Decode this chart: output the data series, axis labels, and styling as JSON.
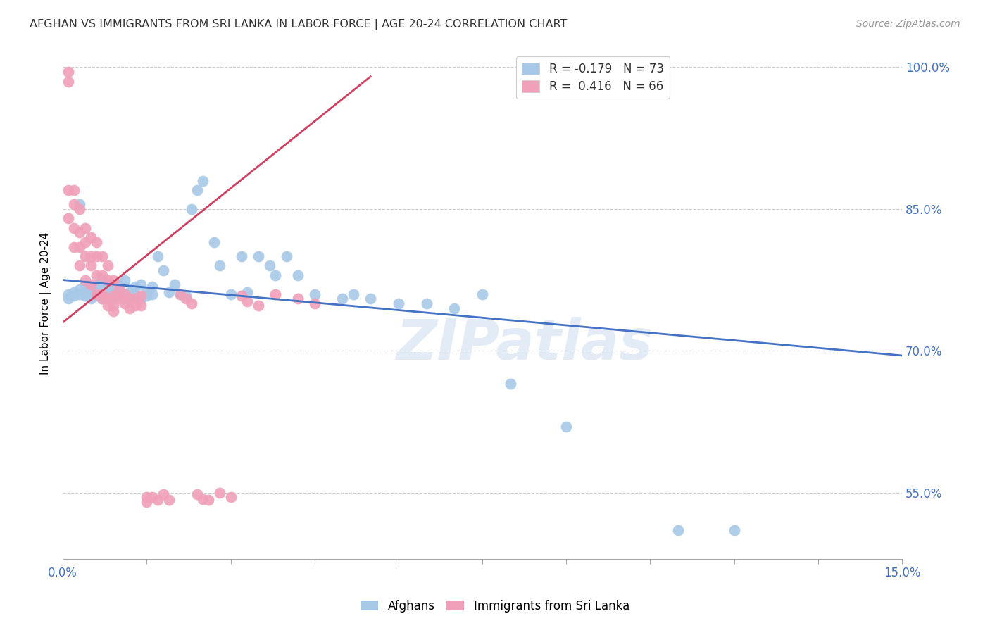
{
  "title": "AFGHAN VS IMMIGRANTS FROM SRI LANKA IN LABOR FORCE | AGE 20-24 CORRELATION CHART",
  "source": "Source: ZipAtlas.com",
  "ylabel": "In Labor Force | Age 20-24",
  "xlim": [
    0.0,
    0.15
  ],
  "ylim": [
    0.48,
    1.02
  ],
  "blue_color": "#a8c8e8",
  "pink_color": "#f0a0b8",
  "trend_blue": "#4472c4",
  "trend_pink": "#d04060",
  "watermark": "ZIPatlas",
  "legend_blue_label_r": "R = -0.179",
  "legend_blue_label_n": "N = 73",
  "legend_pink_label_r": "R =  0.416",
  "legend_pink_label_n": "N = 66",
  "afghans": [
    [
      0.001,
      0.76
    ],
    [
      0.001,
      0.755
    ],
    [
      0.002,
      0.758
    ],
    [
      0.002,
      0.762
    ],
    [
      0.003,
      0.76
    ],
    [
      0.003,
      0.765
    ],
    [
      0.003,
      0.855
    ],
    [
      0.004,
      0.758
    ],
    [
      0.004,
      0.77
    ],
    [
      0.004,
      0.762
    ],
    [
      0.005,
      0.76
    ],
    [
      0.005,
      0.755
    ],
    [
      0.005,
      0.765
    ],
    [
      0.006,
      0.758
    ],
    [
      0.006,
      0.762
    ],
    [
      0.006,
      0.77
    ],
    [
      0.007,
      0.755
    ],
    [
      0.007,
      0.76
    ],
    [
      0.007,
      0.768
    ],
    [
      0.007,
      0.775
    ],
    [
      0.008,
      0.758
    ],
    [
      0.008,
      0.762
    ],
    [
      0.008,
      0.77
    ],
    [
      0.009,
      0.755
    ],
    [
      0.009,
      0.76
    ],
    [
      0.009,
      0.765
    ],
    [
      0.01,
      0.758
    ],
    [
      0.01,
      0.77
    ],
    [
      0.01,
      0.762
    ],
    [
      0.011,
      0.755
    ],
    [
      0.011,
      0.76
    ],
    [
      0.011,
      0.775
    ],
    [
      0.012,
      0.758
    ],
    [
      0.012,
      0.762
    ],
    [
      0.013,
      0.76
    ],
    [
      0.013,
      0.768
    ],
    [
      0.014,
      0.755
    ],
    [
      0.014,
      0.77
    ],
    [
      0.015,
      0.758
    ],
    [
      0.015,
      0.762
    ],
    [
      0.016,
      0.76
    ],
    [
      0.016,
      0.768
    ],
    [
      0.017,
      0.8
    ],
    [
      0.018,
      0.785
    ],
    [
      0.019,
      0.762
    ],
    [
      0.02,
      0.77
    ],
    [
      0.021,
      0.76
    ],
    [
      0.022,
      0.758
    ],
    [
      0.023,
      0.85
    ],
    [
      0.024,
      0.87
    ],
    [
      0.025,
      0.88
    ],
    [
      0.027,
      0.815
    ],
    [
      0.028,
      0.79
    ],
    [
      0.03,
      0.76
    ],
    [
      0.032,
      0.8
    ],
    [
      0.033,
      0.762
    ],
    [
      0.035,
      0.8
    ],
    [
      0.037,
      0.79
    ],
    [
      0.038,
      0.78
    ],
    [
      0.04,
      0.8
    ],
    [
      0.042,
      0.78
    ],
    [
      0.045,
      0.76
    ],
    [
      0.05,
      0.755
    ],
    [
      0.052,
      0.76
    ],
    [
      0.055,
      0.755
    ],
    [
      0.06,
      0.75
    ],
    [
      0.065,
      0.75
    ],
    [
      0.07,
      0.745
    ],
    [
      0.075,
      0.76
    ],
    [
      0.08,
      0.665
    ],
    [
      0.09,
      0.62
    ],
    [
      0.11,
      0.51
    ],
    [
      0.12,
      0.51
    ]
  ],
  "sri_lanka": [
    [
      0.001,
      0.995
    ],
    [
      0.001,
      0.985
    ],
    [
      0.001,
      0.87
    ],
    [
      0.001,
      0.84
    ],
    [
      0.002,
      0.87
    ],
    [
      0.002,
      0.855
    ],
    [
      0.002,
      0.83
    ],
    [
      0.002,
      0.81
    ],
    [
      0.003,
      0.85
    ],
    [
      0.003,
      0.825
    ],
    [
      0.003,
      0.81
    ],
    [
      0.003,
      0.79
    ],
    [
      0.004,
      0.83
    ],
    [
      0.004,
      0.815
    ],
    [
      0.004,
      0.8
    ],
    [
      0.004,
      0.775
    ],
    [
      0.005,
      0.82
    ],
    [
      0.005,
      0.8
    ],
    [
      0.005,
      0.79
    ],
    [
      0.005,
      0.77
    ],
    [
      0.006,
      0.815
    ],
    [
      0.006,
      0.8
    ],
    [
      0.006,
      0.78
    ],
    [
      0.006,
      0.76
    ],
    [
      0.007,
      0.8
    ],
    [
      0.007,
      0.78
    ],
    [
      0.007,
      0.76
    ],
    [
      0.007,
      0.755
    ],
    [
      0.008,
      0.79
    ],
    [
      0.008,
      0.775
    ],
    [
      0.008,
      0.755
    ],
    [
      0.008,
      0.748
    ],
    [
      0.009,
      0.775
    ],
    [
      0.009,
      0.758
    ],
    [
      0.009,
      0.748
    ],
    [
      0.009,
      0.742
    ],
    [
      0.01,
      0.765
    ],
    [
      0.01,
      0.755
    ],
    [
      0.011,
      0.76
    ],
    [
      0.011,
      0.75
    ],
    [
      0.012,
      0.755
    ],
    [
      0.012,
      0.745
    ],
    [
      0.013,
      0.755
    ],
    [
      0.013,
      0.748
    ],
    [
      0.014,
      0.758
    ],
    [
      0.014,
      0.748
    ],
    [
      0.015,
      0.545
    ],
    [
      0.015,
      0.54
    ],
    [
      0.016,
      0.545
    ],
    [
      0.017,
      0.542
    ],
    [
      0.018,
      0.548
    ],
    [
      0.019,
      0.542
    ],
    [
      0.021,
      0.76
    ],
    [
      0.022,
      0.755
    ],
    [
      0.023,
      0.75
    ],
    [
      0.024,
      0.548
    ],
    [
      0.025,
      0.543
    ],
    [
      0.026,
      0.542
    ],
    [
      0.028,
      0.55
    ],
    [
      0.03,
      0.545
    ],
    [
      0.032,
      0.758
    ],
    [
      0.033,
      0.752
    ],
    [
      0.035,
      0.748
    ],
    [
      0.038,
      0.76
    ],
    [
      0.042,
      0.755
    ],
    [
      0.045,
      0.75
    ]
  ],
  "blue_trend_x": [
    0.0,
    0.15
  ],
  "blue_trend_y": [
    0.775,
    0.695
  ],
  "pink_trend_x": [
    0.0,
    0.055
  ],
  "pink_trend_y": [
    0.73,
    0.99
  ],
  "x_ticks": [
    0.0,
    0.015,
    0.03,
    0.045,
    0.06,
    0.075,
    0.09,
    0.105,
    0.12,
    0.135,
    0.15
  ],
  "y_ticks": [
    0.55,
    0.7,
    0.85,
    1.0
  ]
}
